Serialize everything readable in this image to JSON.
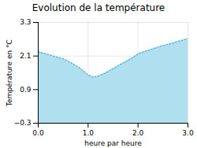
{
  "chart_data": {
    "type": "area",
    "title": "Evolution de la température",
    "xlabel": "heure par heure",
    "ylabel": "Température en °C",
    "x": [
      0,
      0.15,
      0.3,
      0.5,
      0.7,
      0.85,
      1.0,
      1.1,
      1.2,
      1.35,
      1.5,
      1.7,
      1.9,
      2.0,
      2.2,
      2.4,
      2.6,
      2.8,
      3.0
    ],
    "series": [
      {
        "type": "area",
        "color": "#b0e0f0",
        "values": [
          2.25,
          2.18,
          2.1,
          2.0,
          1.82,
          1.65,
          1.42,
          1.35,
          1.38,
          1.5,
          1.65,
          1.85,
          2.05,
          2.18,
          2.3,
          2.42,
          2.52,
          2.62,
          2.72
        ]
      },
      {
        "type": "line",
        "color": "#60b8d8",
        "line_style": "dotted",
        "values": [
          2.25,
          2.18,
          2.1,
          2.0,
          1.82,
          1.65,
          1.42,
          1.35,
          1.38,
          1.5,
          1.65,
          1.85,
          2.05,
          2.18,
          2.3,
          2.42,
          2.52,
          2.62,
          2.72
        ]
      }
    ],
    "xlim": [
      0,
      3
    ],
    "ylim": [
      -0.3,
      3.3
    ],
    "xticks": [
      0,
      1,
      2,
      3
    ],
    "yticks": [
      -0.3,
      0.9,
      2.1,
      3.3
    ],
    "grid": true
  }
}
